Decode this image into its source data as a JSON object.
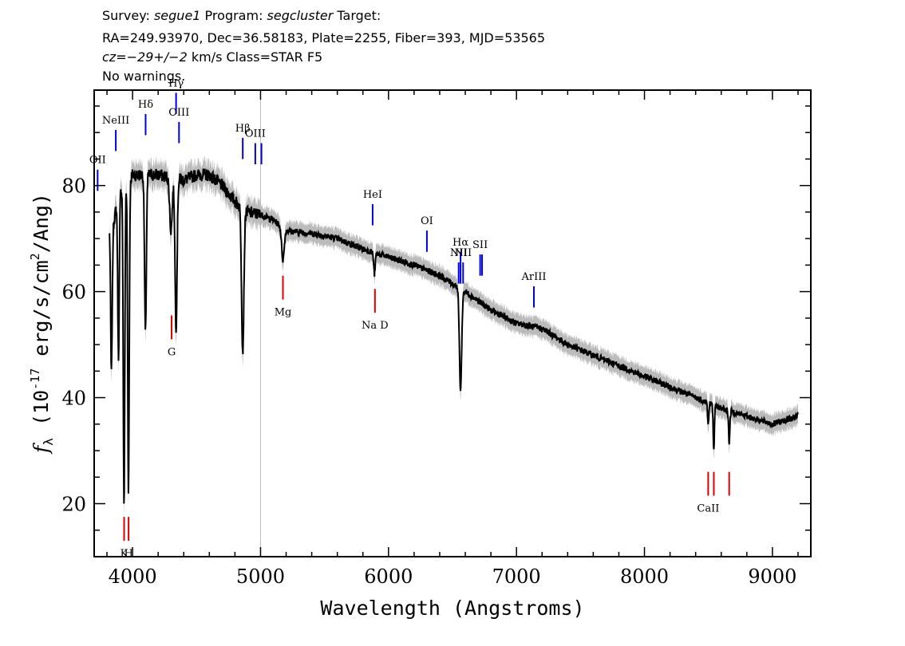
{
  "header": {
    "line1_prefix": "Survey: ",
    "line1_survey": "segue1",
    "line1_mid": " Program: ",
    "line1_program": "segcluster",
    "line1_suffix": " Target:",
    "line2": "RA=249.93970, Dec=36.58183, Plate=2255, Fiber=393, MJD=53565",
    "line3_cz": "cz=−29+/−2",
    "line3_rest": " km/s Class=STAR F5",
    "line4": "No warnings."
  },
  "chart_data": {
    "type": "line",
    "xlabel": "Wavelength (Angstroms)",
    "ylabel": "f_λ (10^-17 erg/s/cm^2/Ang)",
    "xlim": [
      3700,
      9300
    ],
    "ylim": [
      10,
      98
    ],
    "x_ticks": [
      4000,
      5000,
      6000,
      7000,
      8000,
      9000
    ],
    "y_ticks": [
      20,
      40,
      60,
      80
    ],
    "vline_x": 5000,
    "colors": {
      "spectrum": "#000000",
      "error_band": "#bbbbbb",
      "emission_marker": "#0000dd",
      "absorption_marker": "#dd0000",
      "vline": "#bbbbbb"
    },
    "continuum": [
      [
        3820,
        72
      ],
      [
        3850,
        73
      ],
      [
        3900,
        79
      ],
      [
        3950,
        80
      ],
      [
        4000,
        82
      ],
      [
        4100,
        82
      ],
      [
        4200,
        82
      ],
      [
        4300,
        81.5
      ],
      [
        4400,
        81
      ],
      [
        4500,
        82
      ],
      [
        4600,
        82
      ],
      [
        4700,
        80
      ],
      [
        4800,
        77
      ],
      [
        4900,
        75
      ],
      [
        5000,
        74.5
      ],
      [
        5100,
        73.5
      ],
      [
        5200,
        71.5
      ],
      [
        5400,
        71
      ],
      [
        5600,
        70
      ],
      [
        5800,
        68
      ],
      [
        6000,
        66.5
      ],
      [
        6200,
        65
      ],
      [
        6400,
        63
      ],
      [
        6600,
        60
      ],
      [
        6800,
        56.5
      ],
      [
        7000,
        54
      ],
      [
        7200,
        53
      ],
      [
        7400,
        50
      ],
      [
        7600,
        48
      ],
      [
        7800,
        46
      ],
      [
        8000,
        44
      ],
      [
        8200,
        42
      ],
      [
        8400,
        40
      ],
      [
        8600,
        38
      ],
      [
        8800,
        36.5
      ],
      [
        9000,
        35
      ],
      [
        9200,
        36.5
      ]
    ],
    "absorption_features": [
      {
        "center": 3835,
        "depth": 28,
        "width": 6
      },
      {
        "center": 3890,
        "depth": 30,
        "width": 6
      },
      {
        "center": 3933,
        "depth": 60,
        "width": 6
      },
      {
        "center": 3968,
        "depth": 58,
        "width": 6
      },
      {
        "center": 4101,
        "depth": 30,
        "width": 7
      },
      {
        "center": 4300,
        "depth": 10,
        "width": 10
      },
      {
        "center": 4340,
        "depth": 28,
        "width": 8
      },
      {
        "center": 4861,
        "depth": 27,
        "width": 9
      },
      {
        "center": 5175,
        "depth": 6,
        "width": 10
      },
      {
        "center": 5890,
        "depth": 4,
        "width": 6
      },
      {
        "center": 6563,
        "depth": 19,
        "width": 9
      },
      {
        "center": 8498,
        "depth": 4,
        "width": 5
      },
      {
        "center": 8542,
        "depth": 8,
        "width": 5
      },
      {
        "center": 8662,
        "depth": 6,
        "width": 5
      }
    ],
    "emission_lines": [
      {
        "label": "OII",
        "x": 3727,
        "y": 79,
        "length": 4
      },
      {
        "label": "NeIII",
        "x": 3869,
        "y": 86.5,
        "length": 4
      },
      {
        "label": "Hδ",
        "x": 4102,
        "y": 89.5,
        "length": 4
      },
      {
        "label": "Hγ",
        "x": 4340,
        "y": 93.5,
        "length": 4
      },
      {
        "label": "OIII",
        "x": 4363,
        "y": 88,
        "length": 4
      },
      {
        "label": "Hβ",
        "x": 4861,
        "y": 85,
        "length": 4
      },
      {
        "label": "OIII",
        "x": 4959,
        "y": 84,
        "length": 4
      },
      {
        "label": "",
        "x": 5007,
        "y": 84,
        "length": 4
      },
      {
        "label": "HeI",
        "x": 5876,
        "y": 72.5,
        "length": 4
      },
      {
        "label": "OI",
        "x": 6300,
        "y": 67.5,
        "length": 4
      },
      {
        "label": "NII",
        "x": 6548,
        "y": 61.5,
        "length": 4
      },
      {
        "label": "Hα",
        "x": 6563,
        "y": 61.5,
        "length": 6
      },
      {
        "label": "NII",
        "x": 6583,
        "y": 61.5,
        "length": 4
      },
      {
        "label": "SII",
        "x": 6716,
        "y": 63,
        "length": 4
      },
      {
        "label": "",
        "x": 6731,
        "y": 63,
        "length": 4
      },
      {
        "label": "ArIII",
        "x": 7136,
        "y": 57,
        "length": 4
      }
    ],
    "absorption_lines": [
      {
        "label": "K",
        "x": 3934,
        "y": 17.5,
        "length": 4.5
      },
      {
        "label": "H",
        "x": 3969,
        "y": 17.5,
        "length": 4.5
      },
      {
        "label": "G",
        "x": 4305,
        "y": 55.5,
        "length": 4.5
      },
      {
        "label": "Mg",
        "x": 5175,
        "y": 63,
        "length": 4.5
      },
      {
        "label": "Na  D",
        "x": 5894,
        "y": 60.5,
        "length": 4.5
      },
      {
        "label": "CaII",
        "x": 8498,
        "y": 26,
        "length": 4.5
      },
      {
        "label": "",
        "x": 8542,
        "y": 26,
        "length": 4.5
      },
      {
        "label": "",
        "x": 8662,
        "y": 26,
        "length": 4.5
      }
    ]
  }
}
